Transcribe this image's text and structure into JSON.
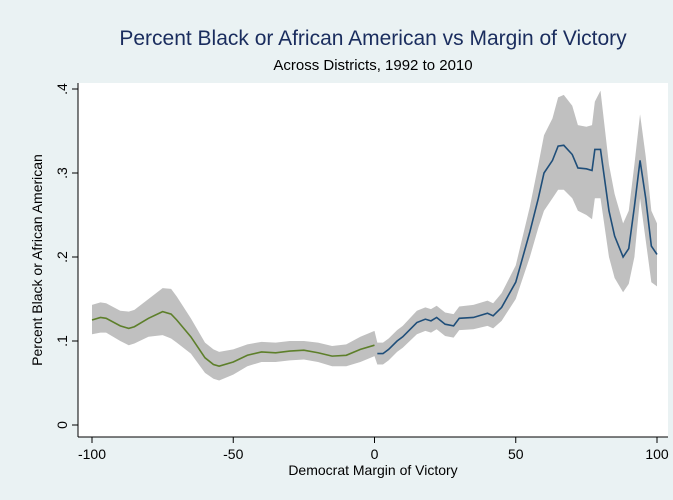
{
  "chart_data": {
    "type": "band-line",
    "title": "Percent Black or African American vs Margin of Victory",
    "subtitle": "Across Districts, 1992 to 2010",
    "x_label": "Democrat Margin of Victory",
    "y_label": "Percent Black or African American",
    "x": [
      -100,
      -97,
      -95,
      -90,
      -87,
      -85,
      -80,
      -75,
      -72,
      -70,
      -65,
      -60,
      -57,
      -55,
      -50,
      -45,
      -40,
      -35,
      -30,
      -25,
      -20,
      -15,
      -10,
      -5,
      0,
      1,
      3,
      5,
      8,
      10,
      15,
      18,
      20,
      22,
      25,
      28,
      30,
      35,
      40,
      42,
      45,
      50,
      55,
      58,
      60,
      63,
      65,
      67,
      70,
      72,
      75,
      77,
      78,
      80,
      83,
      85,
      88,
      90,
      92,
      94,
      96,
      98,
      100
    ],
    "band": {
      "color": "#c0c0c0",
      "lower": [
        0.108,
        0.11,
        0.11,
        0.1,
        0.095,
        0.097,
        0.105,
        0.107,
        0.103,
        0.098,
        0.085,
        0.062,
        0.055,
        0.053,
        0.06,
        0.07,
        0.075,
        0.075,
        0.077,
        0.078,
        0.075,
        0.07,
        0.07,
        0.075,
        0.082,
        0.072,
        0.072,
        0.077,
        0.087,
        0.092,
        0.108,
        0.112,
        0.11,
        0.114,
        0.106,
        0.104,
        0.113,
        0.114,
        0.118,
        0.115,
        0.124,
        0.15,
        0.2,
        0.235,
        0.255,
        0.27,
        0.28,
        0.28,
        0.27,
        0.255,
        0.25,
        0.245,
        0.27,
        0.27,
        0.2,
        0.175,
        0.158,
        0.168,
        0.2,
        0.27,
        0.22,
        0.17,
        0.165
      ],
      "upper": [
        0.143,
        0.146,
        0.145,
        0.136,
        0.135,
        0.137,
        0.15,
        0.163,
        0.162,
        0.153,
        0.127,
        0.098,
        0.09,
        0.087,
        0.09,
        0.096,
        0.099,
        0.098,
        0.1,
        0.1,
        0.098,
        0.094,
        0.096,
        0.105,
        0.112,
        0.098,
        0.098,
        0.103,
        0.113,
        0.118,
        0.136,
        0.14,
        0.138,
        0.142,
        0.134,
        0.132,
        0.141,
        0.143,
        0.148,
        0.145,
        0.157,
        0.19,
        0.26,
        0.31,
        0.345,
        0.365,
        0.39,
        0.393,
        0.38,
        0.357,
        0.355,
        0.357,
        0.385,
        0.398,
        0.31,
        0.275,
        0.24,
        0.255,
        0.31,
        0.37,
        0.32,
        0.255,
        0.24
      ]
    },
    "series": [
      {
        "color": "#5d7f2a",
        "values": [
          0.125,
          0.128,
          0.127,
          0.118,
          0.115,
          0.117,
          0.127,
          0.135,
          0.132,
          0.125,
          0.105,
          0.08,
          0.072,
          0.07,
          0.075,
          0.083,
          0.087,
          0.086,
          0.088,
          0.089,
          0.086,
          0.082,
          0.083,
          0.09,
          0.095,
          null,
          null,
          null,
          null,
          null,
          null,
          null,
          null,
          null,
          null,
          null,
          null,
          null,
          null,
          null,
          null,
          null,
          null,
          null,
          null,
          null,
          null,
          null,
          null,
          null,
          null,
          null,
          null,
          null,
          null,
          null,
          null,
          null,
          null,
          null,
          null,
          null,
          null
        ]
      },
      {
        "color": "#1f4e79",
        "values": [
          null,
          null,
          null,
          null,
          null,
          null,
          null,
          null,
          null,
          null,
          null,
          null,
          null,
          null,
          null,
          null,
          null,
          null,
          null,
          null,
          null,
          null,
          null,
          null,
          null,
          0.085,
          0.085,
          0.09,
          0.1,
          0.105,
          0.122,
          0.126,
          0.124,
          0.128,
          0.12,
          0.118,
          0.127,
          0.128,
          0.133,
          0.13,
          0.14,
          0.17,
          0.23,
          0.27,
          0.3,
          0.315,
          0.332,
          0.333,
          0.322,
          0.306,
          0.305,
          0.303,
          0.328,
          0.328,
          0.255,
          0.225,
          0.2,
          0.21,
          0.26,
          0.315,
          0.27,
          0.213,
          0.203
        ]
      }
    ],
    "xlim": [
      -100,
      100
    ],
    "xticks": [
      -100,
      -50,
      0,
      50,
      100
    ],
    "ylim": [
      0,
      0.4
    ],
    "yticks": [
      0,
      {
        "value": 0.1,
        "label": ".1"
      },
      {
        "value": 0.2,
        "label": ".2"
      },
      {
        "value": 0.3,
        "label": ".3"
      },
      {
        "value": 0.4,
        "label": ".4"
      }
    ]
  }
}
